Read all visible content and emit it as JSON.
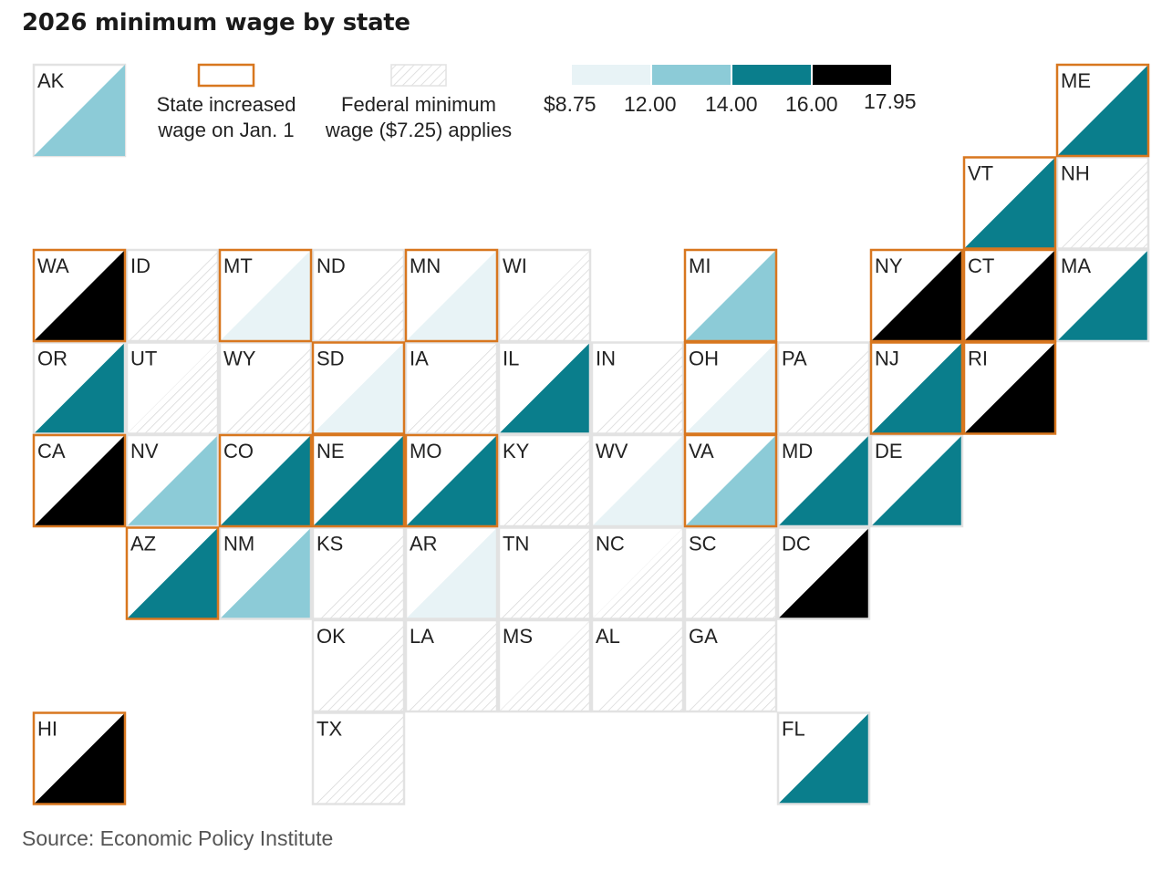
{
  "title": "2026 minimum wage by state",
  "source": "Source: Economic Policy Institute",
  "colors": {
    "tier_8_75_12": "#e8f3f6",
    "tier_12_14": "#8ccbd7",
    "tier_14_16": "#0a7e8c",
    "tier_16_17_95": "#000000",
    "increased_border": "#d8771f",
    "default_border": "#e2e2e2",
    "hatch": "#d6d6d6"
  },
  "legend": {
    "example_state": "AK",
    "increased_line1": "State increased",
    "increased_line2": "wage on Jan. 1",
    "federal_line1": "Federal minimum",
    "federal_line2": "wage ($7.25) applies",
    "scale_labels": [
      "$8.75",
      "12.00",
      "14.00",
      "16.00",
      "17.95"
    ]
  },
  "states": [
    {
      "abbr": "ME",
      "row": 0,
      "col": 11,
      "tier": 3,
      "increased": true
    },
    {
      "abbr": "VT",
      "row": 1,
      "col": 10,
      "tier": 3,
      "increased": true
    },
    {
      "abbr": "NH",
      "row": 1,
      "col": 11,
      "tier": 0,
      "increased": false
    },
    {
      "abbr": "WA",
      "row": 2,
      "col": 0,
      "tier": 4,
      "increased": true
    },
    {
      "abbr": "ID",
      "row": 2,
      "col": 1,
      "tier": 0,
      "increased": false
    },
    {
      "abbr": "MT",
      "row": 2,
      "col": 2,
      "tier": 1,
      "increased": true
    },
    {
      "abbr": "ND",
      "row": 2,
      "col": 3,
      "tier": 0,
      "increased": false
    },
    {
      "abbr": "MN",
      "row": 2,
      "col": 4,
      "tier": 1,
      "increased": true
    },
    {
      "abbr": "WI",
      "row": 2,
      "col": 5,
      "tier": 0,
      "increased": false
    },
    {
      "abbr": "MI",
      "row": 2,
      "col": 7,
      "tier": 2,
      "increased": true
    },
    {
      "abbr": "NY",
      "row": 2,
      "col": 9,
      "tier": 4,
      "increased": true
    },
    {
      "abbr": "CT",
      "row": 2,
      "col": 10,
      "tier": 4,
      "increased": true
    },
    {
      "abbr": "MA",
      "row": 2,
      "col": 11,
      "tier": 3,
      "increased": false
    },
    {
      "abbr": "OR",
      "row": 3,
      "col": 0,
      "tier": 3,
      "increased": false
    },
    {
      "abbr": "UT",
      "row": 3,
      "col": 1,
      "tier": 0,
      "increased": false
    },
    {
      "abbr": "WY",
      "row": 3,
      "col": 2,
      "tier": 0,
      "increased": false
    },
    {
      "abbr": "SD",
      "row": 3,
      "col": 3,
      "tier": 1,
      "increased": true
    },
    {
      "abbr": "IA",
      "row": 3,
      "col": 4,
      "tier": 0,
      "increased": false
    },
    {
      "abbr": "IL",
      "row": 3,
      "col": 5,
      "tier": 3,
      "increased": false
    },
    {
      "abbr": "IN",
      "row": 3,
      "col": 6,
      "tier": 0,
      "increased": false
    },
    {
      "abbr": "OH",
      "row": 3,
      "col": 7,
      "tier": 1,
      "increased": true
    },
    {
      "abbr": "PA",
      "row": 3,
      "col": 8,
      "tier": 0,
      "increased": false
    },
    {
      "abbr": "NJ",
      "row": 3,
      "col": 9,
      "tier": 3,
      "increased": true
    },
    {
      "abbr": "RI",
      "row": 3,
      "col": 10,
      "tier": 4,
      "increased": true
    },
    {
      "abbr": "CA",
      "row": 4,
      "col": 0,
      "tier": 4,
      "increased": true
    },
    {
      "abbr": "NV",
      "row": 4,
      "col": 1,
      "tier": 2,
      "increased": false
    },
    {
      "abbr": "CO",
      "row": 4,
      "col": 2,
      "tier": 3,
      "increased": true
    },
    {
      "abbr": "NE",
      "row": 4,
      "col": 3,
      "tier": 3,
      "increased": true
    },
    {
      "abbr": "MO",
      "row": 4,
      "col": 4,
      "tier": 3,
      "increased": true
    },
    {
      "abbr": "KY",
      "row": 4,
      "col": 5,
      "tier": 0,
      "increased": false
    },
    {
      "abbr": "WV",
      "row": 4,
      "col": 6,
      "tier": 1,
      "increased": false
    },
    {
      "abbr": "VA",
      "row": 4,
      "col": 7,
      "tier": 2,
      "increased": true
    },
    {
      "abbr": "MD",
      "row": 4,
      "col": 8,
      "tier": 3,
      "increased": false
    },
    {
      "abbr": "DE",
      "row": 4,
      "col": 9,
      "tier": 3,
      "increased": false
    },
    {
      "abbr": "AZ",
      "row": 5,
      "col": 1,
      "tier": 3,
      "increased": true
    },
    {
      "abbr": "NM",
      "row": 5,
      "col": 2,
      "tier": 2,
      "increased": false
    },
    {
      "abbr": "KS",
      "row": 5,
      "col": 3,
      "tier": 0,
      "increased": false
    },
    {
      "abbr": "AR",
      "row": 5,
      "col": 4,
      "tier": 1,
      "increased": false
    },
    {
      "abbr": "TN",
      "row": 5,
      "col": 5,
      "tier": 0,
      "increased": false
    },
    {
      "abbr": "NC",
      "row": 5,
      "col": 6,
      "tier": 0,
      "increased": false
    },
    {
      "abbr": "SC",
      "row": 5,
      "col": 7,
      "tier": 0,
      "increased": false
    },
    {
      "abbr": "DC",
      "row": 5,
      "col": 8,
      "tier": 4,
      "increased": false
    },
    {
      "abbr": "OK",
      "row": 6,
      "col": 3,
      "tier": 0,
      "increased": false
    },
    {
      "abbr": "LA",
      "row": 6,
      "col": 4,
      "tier": 0,
      "increased": false
    },
    {
      "abbr": "MS",
      "row": 6,
      "col": 5,
      "tier": 0,
      "increased": false
    },
    {
      "abbr": "AL",
      "row": 6,
      "col": 6,
      "tier": 0,
      "increased": false
    },
    {
      "abbr": "GA",
      "row": 6,
      "col": 7,
      "tier": 0,
      "increased": false
    },
    {
      "abbr": "HI",
      "row": 7,
      "col": 0,
      "tier": 4,
      "increased": true
    },
    {
      "abbr": "TX",
      "row": 7,
      "col": 3,
      "tier": 0,
      "increased": false
    },
    {
      "abbr": "FL",
      "row": 7,
      "col": 8,
      "tier": 3,
      "increased": false
    }
  ]
}
